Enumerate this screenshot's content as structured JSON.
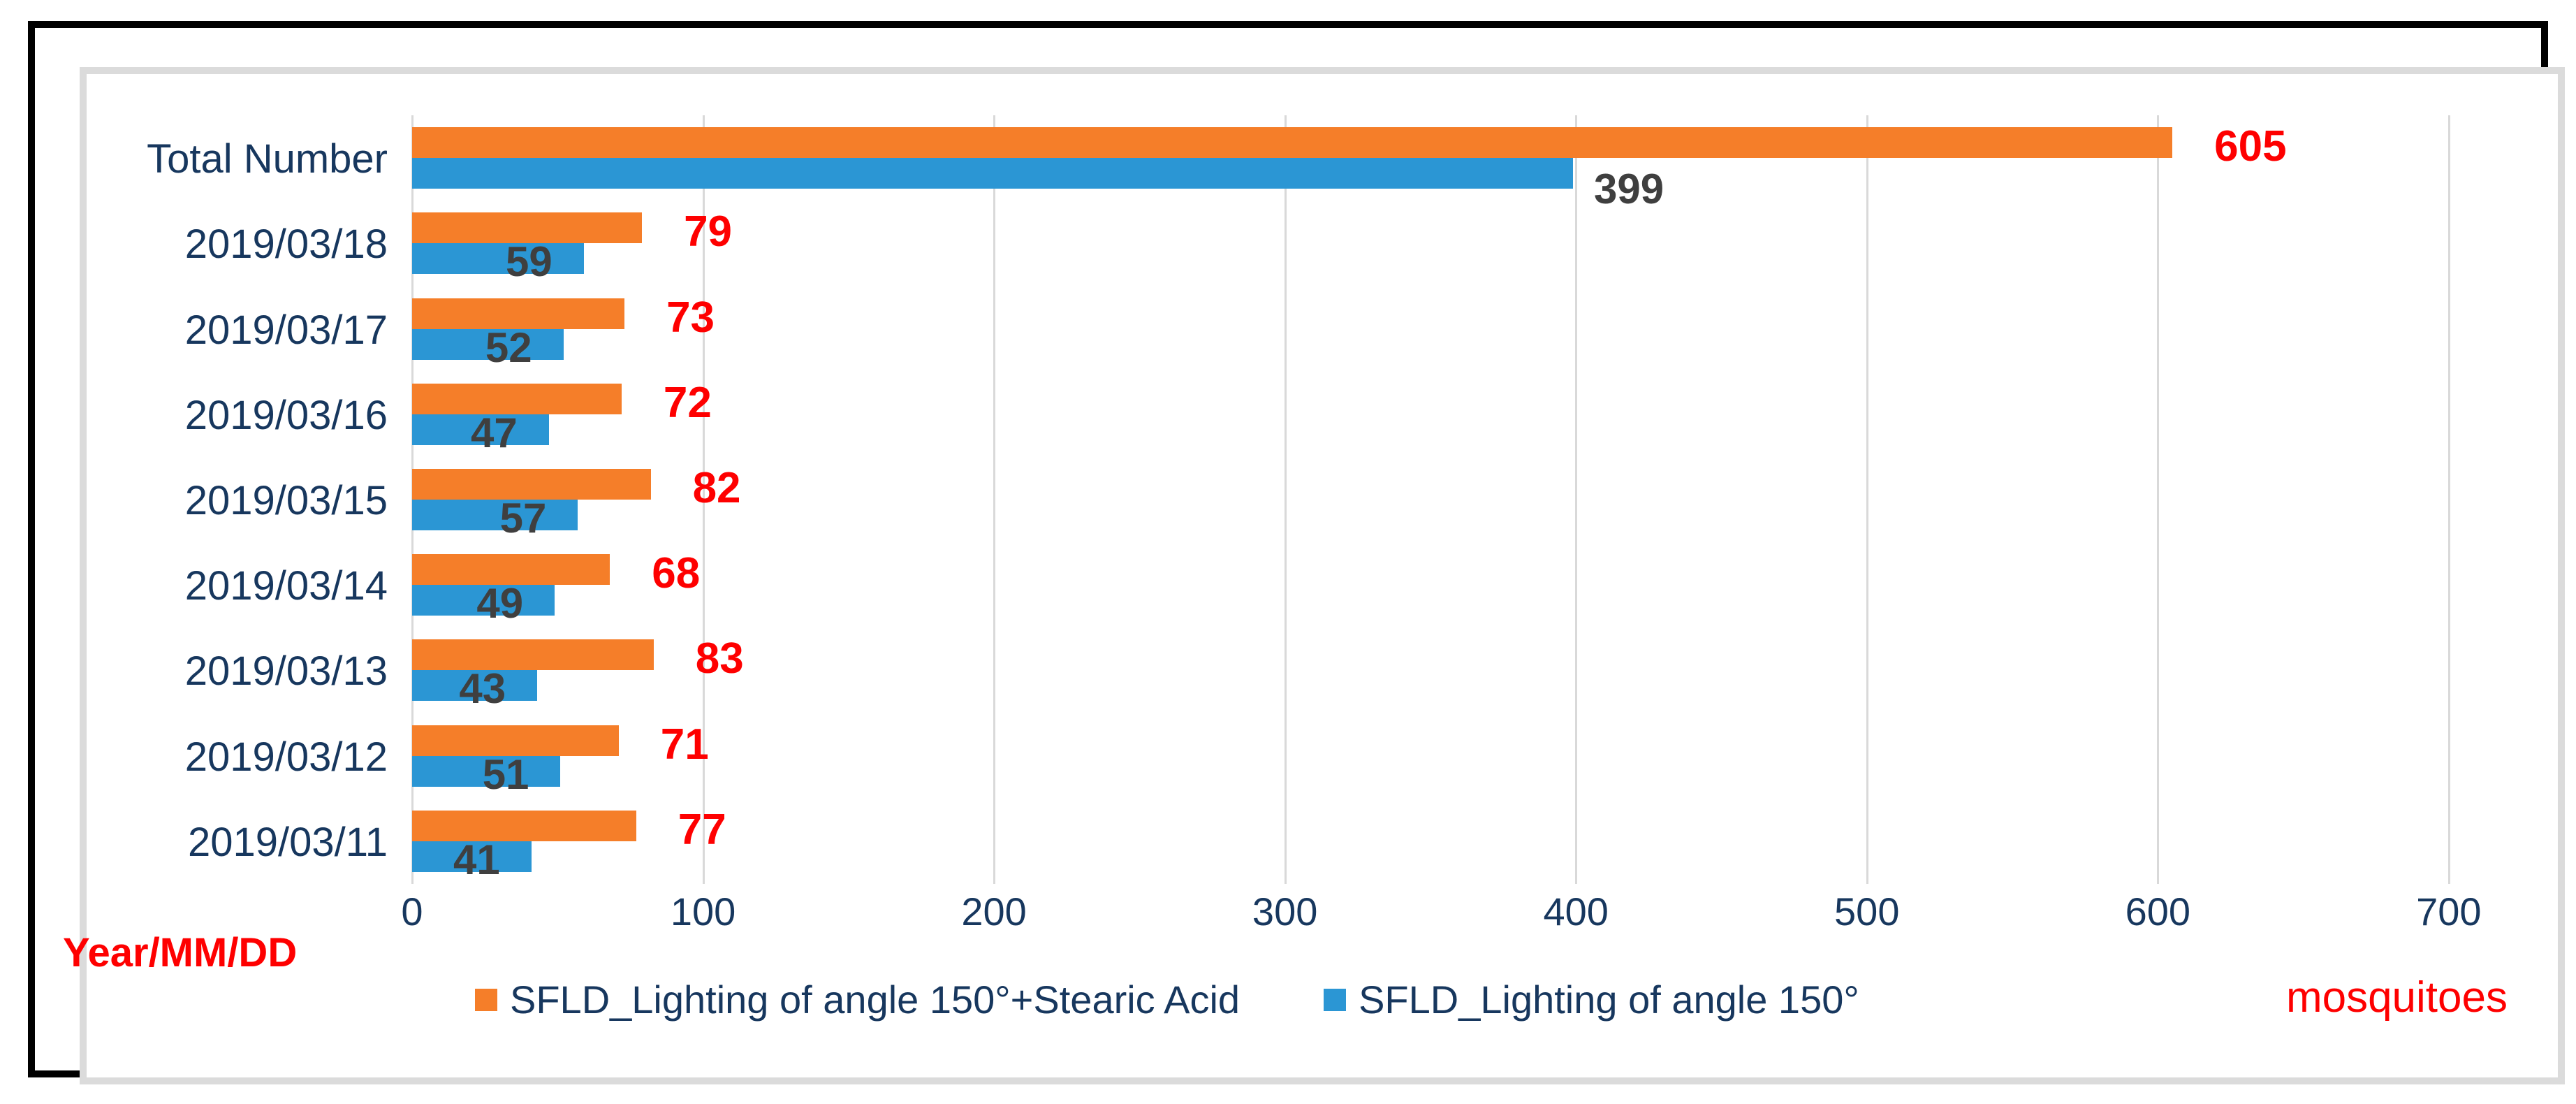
{
  "chart_data": {
    "type": "bar",
    "orientation": "horizontal",
    "categories": [
      "Total Number",
      "2019/03/18",
      "2019/03/17",
      "2019/03/16",
      "2019/03/15",
      "2019/03/14",
      "2019/03/13",
      "2019/03/12",
      "2019/03/11"
    ],
    "series": [
      {
        "name": "SFLD_Lighting of angle 150°+Stearic Acid",
        "values": [
          605,
          79,
          73,
          72,
          82,
          68,
          83,
          71,
          77
        ]
      },
      {
        "name": "SFLD_Lighting of angle 150°",
        "values": [
          399,
          59,
          52,
          47,
          57,
          49,
          43,
          51,
          41
        ]
      }
    ],
    "x_ticks": [
      "0",
      "100",
      "200",
      "300",
      "400",
      "500",
      "600",
      "700"
    ],
    "xlim": [
      0,
      725
    ],
    "grid": true,
    "legend_position": "bottom",
    "axis_caption_left": "Year/MM/DD",
    "axis_caption_right": "mosquitoes"
  },
  "colors": {
    "series1_bar": "#F57E29",
    "series2_bar": "#2B96D4",
    "series1_label": "#FE0000",
    "series2_label": "#3F3F3F",
    "axis_text": "#17375E",
    "caption_text": "#FE0000",
    "gridline": "#D9D9D9",
    "outer_frame": "#000000",
    "chart_border": "#DBDBDB",
    "background": "#FFFFFF"
  }
}
